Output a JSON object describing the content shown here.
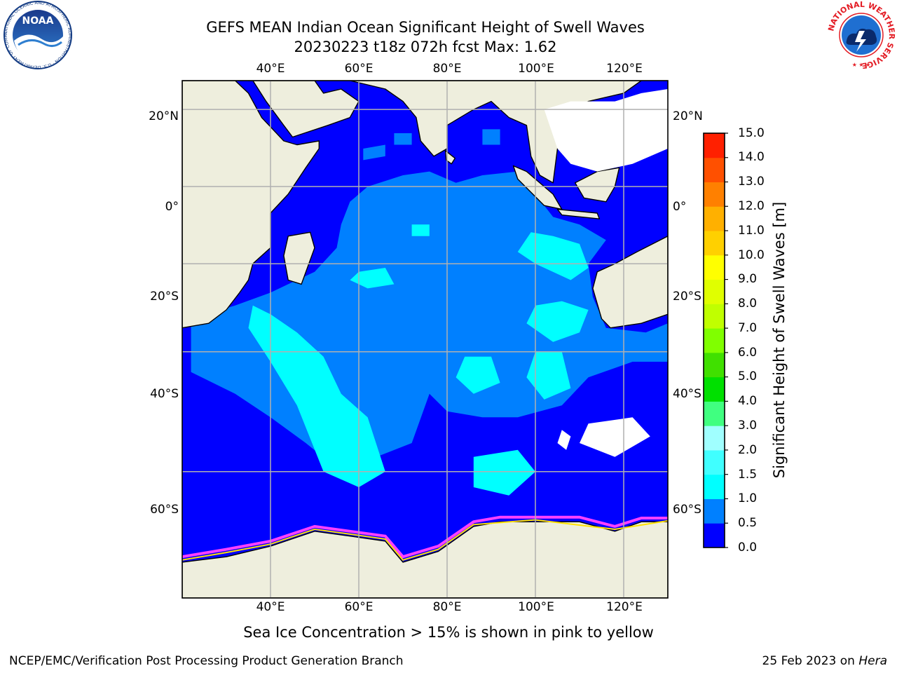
{
  "title_line1": "GEFS MEAN Indian Ocean Significant Height of Swell Waves",
  "title_line2": "20230223 t18z 072h fcst   Max: 1.62",
  "caption": "Sea Ice Concentration > 15% is shown in pink to yellow",
  "footer_left": "NCEP/EMC/Verification Post Processing Product Generation Branch",
  "footer_right_date": "25 Feb 2023 on ",
  "footer_right_machine": "Hera",
  "logo_left_text": "NOAA",
  "logo_left_ring_text": "NATIONAL OCEANIC AND ATMOSPHERIC ADMINISTRATION · U.S. DEPARTMENT OF COMMERCE",
  "logo_right_ring_text": "NATIONAL WEATHER SERVICE",
  "map": {
    "lon_range": [
      20,
      130
    ],
    "lat_range": [
      -73,
      27
    ],
    "lon_ticks": [
      "40°E",
      "60°E",
      "80°E",
      "100°E",
      "120°E"
    ],
    "lat_ticks_left": [
      "20°N",
      "0°",
      "20°S",
      "40°S",
      "60°S"
    ],
    "lat_ticks_right": [
      "20°N",
      "0°",
      "20°S",
      "40°S",
      "60°S"
    ],
    "grid": true,
    "land_color": "#eeeedd",
    "ocean_base_color": "#0000ff",
    "missing_color": "#ffffff"
  },
  "colorbar": {
    "label": "Significant Height of Swell Waves [m]",
    "tick_labels": [
      "0.0",
      "0.5",
      "1.0",
      "1.5",
      "2.0",
      "3.0",
      "4.0",
      "5.0",
      "6.0",
      "7.0",
      "8.0",
      "9.0",
      "10.0",
      "11.0",
      "12.0",
      "13.0",
      "14.0",
      "15.0"
    ],
    "colors": [
      "#0000ff",
      "#0080ff",
      "#00ffff",
      "#40ffff",
      "#a0ffff",
      "#40ff80",
      "#00e000",
      "#40e000",
      "#80ff00",
      "#c0ff00",
      "#e0ff00",
      "#ffff00",
      "#ffd000",
      "#ffb000",
      "#ff8000",
      "#ff5000",
      "#ff2000"
    ]
  }
}
